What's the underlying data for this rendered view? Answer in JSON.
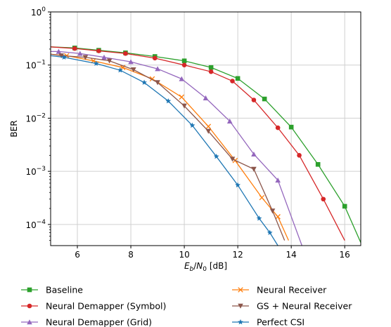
{
  "chart_data": {
    "type": "line",
    "title": "",
    "xlabel": "E_b/N_0 [dB]",
    "ylabel": "BER",
    "xlim": [
      5.0,
      16.6
    ],
    "ylim": [
      4e-05,
      1.0
    ],
    "yscale": "log",
    "grid": true,
    "legend_position": "below",
    "x_ticks": [
      6,
      8,
      10,
      12,
      14,
      16
    ],
    "y_ticks": [
      {
        "value": 1.0,
        "mantissa": "10",
        "exp": "0"
      },
      {
        "value": 0.1,
        "mantissa": "10",
        "exp": "−1"
      },
      {
        "value": 0.01,
        "mantissa": "10",
        "exp": "−2"
      },
      {
        "value": 0.001,
        "mantissa": "10",
        "exp": "−3"
      },
      {
        "value": 0.0001,
        "mantissa": "10",
        "exp": "−4"
      }
    ],
    "series": [
      {
        "name": "Baseline",
        "color": "#2ca02c",
        "marker": "square",
        "x": [
          5.0,
          5.9,
          6.8,
          7.8,
          8.9,
          10.0,
          11.0,
          12.0,
          13.0,
          14.0,
          15.0,
          16.0,
          16.65
        ],
        "y": [
          0.22,
          0.21,
          0.19,
          0.17,
          0.145,
          0.12,
          0.09,
          0.056,
          0.023,
          0.0068,
          0.00135,
          0.00022,
          4e-05
        ]
      },
      {
        "name": "Neural Demapper (Symbol)",
        "color": "#d62728",
        "marker": "circle",
        "x": [
          5.0,
          5.9,
          6.8,
          7.8,
          8.9,
          10.0,
          11.0,
          11.8,
          12.6,
          13.5,
          14.3,
          15.2,
          16.0
        ],
        "y": [
          0.22,
          0.205,
          0.185,
          0.165,
          0.135,
          0.1,
          0.075,
          0.05,
          0.022,
          0.0066,
          0.002,
          0.0003,
          5e-05
        ]
      },
      {
        "name": "Neural Demapper (Grid)",
        "color": "#9467bd",
        "marker": "triangle-up",
        "x": [
          5.0,
          5.3,
          6.1,
          7.0,
          8.0,
          9.0,
          9.9,
          10.8,
          11.7,
          12.6,
          13.5,
          14.4
        ],
        "y": [
          0.18,
          0.18,
          0.165,
          0.14,
          0.115,
          0.085,
          0.055,
          0.024,
          0.0088,
          0.0021,
          0.00068,
          4e-05
        ]
      },
      {
        "name": "Neural Receiver",
        "color": "#ff7f0e",
        "marker": "x",
        "x": [
          5.0,
          5.6,
          6.6,
          7.7,
          8.8,
          9.9,
          10.9,
          11.9,
          12.9,
          13.5,
          13.9
        ],
        "y": [
          0.16,
          0.15,
          0.12,
          0.09,
          0.055,
          0.025,
          0.007,
          0.0016,
          0.00032,
          0.00014,
          5e-05
        ]
      },
      {
        "name": "GS + Neural Receiver",
        "color": "#8c564b",
        "marker": "triangle-down",
        "x": [
          5.0,
          5.4,
          6.3,
          7.2,
          8.1,
          9.0,
          10.0,
          10.9,
          11.8,
          12.6,
          13.3,
          13.75
        ],
        "y": [
          0.16,
          0.15,
          0.14,
          0.12,
          0.082,
          0.047,
          0.017,
          0.0057,
          0.0017,
          0.0011,
          0.00018,
          5e-05
        ]
      },
      {
        "name": "Perfect CSI",
        "color": "#1f77b4",
        "marker": "star",
        "x": [
          5.0,
          5.5,
          6.7,
          7.6,
          8.5,
          9.4,
          10.3,
          11.2,
          12.0,
          12.8,
          13.2,
          13.5
        ],
        "y": [
          0.15,
          0.14,
          0.107,
          0.08,
          0.047,
          0.021,
          0.0073,
          0.0019,
          0.00055,
          0.00013,
          7e-05,
          4e-05
        ]
      }
    ]
  }
}
